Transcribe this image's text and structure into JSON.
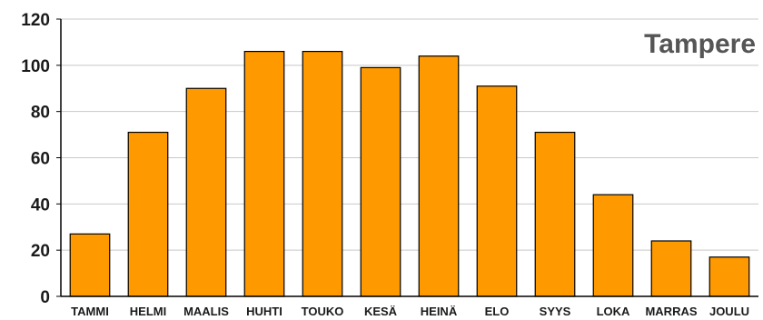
{
  "chart_data": {
    "type": "bar",
    "title": "Tampere",
    "xlabel": "",
    "ylabel": "",
    "categories": [
      "TAMMI",
      "HELMI",
      "MAALIS",
      "HUHTI",
      "TOUKO",
      "KESÄ",
      "HEINÄ",
      "ELO",
      "SYYS",
      "LOKA",
      "MARRAS",
      "JOULU"
    ],
    "values": [
      27,
      71,
      90,
      106,
      106,
      99,
      104,
      91,
      71,
      44,
      24,
      17
    ],
    "ylim": [
      0,
      120
    ],
    "yticks": [
      "0",
      "20",
      "40",
      "60",
      "80",
      "100",
      "120"
    ],
    "grid": true,
    "legend": "none",
    "colors": {
      "bar_fill": "#FF9900",
      "bar_stroke": "#000000",
      "grid": "#c8c8c8",
      "axis": "#000000",
      "title": "#555555"
    }
  }
}
